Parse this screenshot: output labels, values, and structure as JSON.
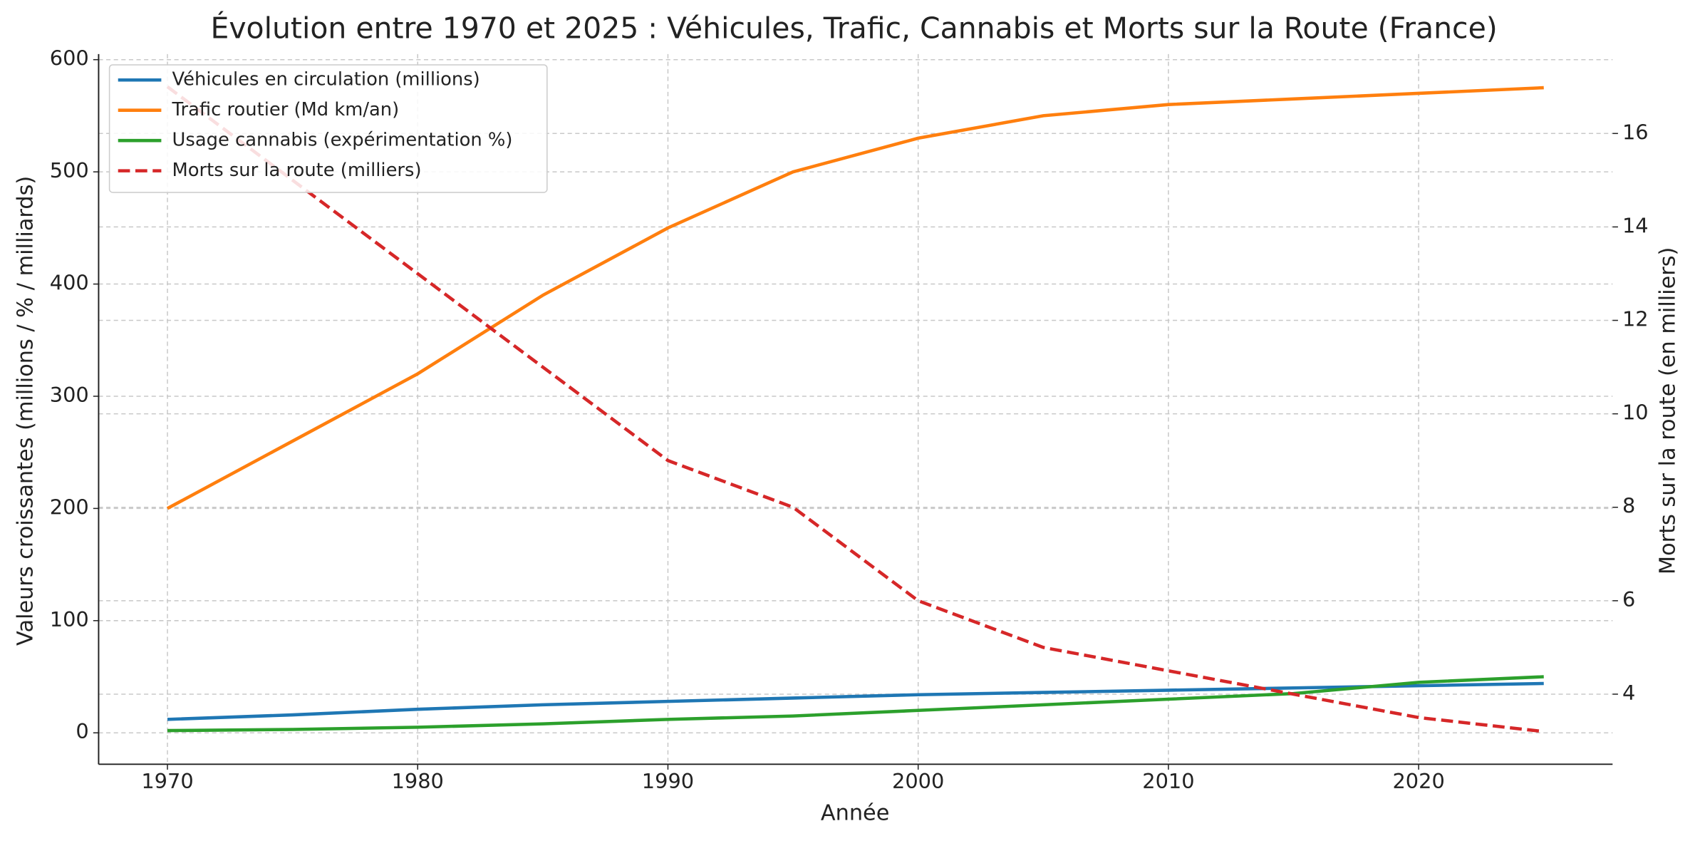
{
  "chart_data": {
    "type": "line",
    "title": "Évolution entre 1970 et 2025 : Véhicules, Trafic, Cannabis et Morts sur la Route (France)",
    "xlabel": "Année",
    "ylabel": "Valeurs croissantes (millions / % / milliards)",
    "y2label": "Morts sur la route (en milliers)",
    "x": [
      1970,
      1975,
      1980,
      1985,
      1990,
      1995,
      2000,
      2005,
      2010,
      2015,
      2020,
      2025
    ],
    "series": [
      {
        "name": "Véhicules en circulation (millions)",
        "color": "#1f77b4",
        "values": [
          12,
          16,
          21,
          25,
          28,
          31,
          34,
          36,
          38,
          40,
          42,
          44
        ]
      },
      {
        "name": "Trafic routier (Md km/an)",
        "color": "#ff7f0e",
        "values": [
          200,
          260,
          320,
          390,
          450,
          500,
          530,
          550,
          560,
          565,
          570,
          575
        ]
      },
      {
        "name": "Usage cannabis (expérimentation %)",
        "color": "#2ca02c",
        "values": [
          2,
          3,
          5,
          8,
          12,
          15,
          20,
          25,
          30,
          35,
          45,
          50
        ]
      },
      {
        "name": "Morts sur la route (milliers)",
        "color": "#d62728",
        "linestyle": "dashed",
        "axis": "y2",
        "values": [
          17,
          15,
          13,
          11,
          9,
          8,
          6,
          5,
          4.5,
          4,
          3.5,
          3.2
        ]
      }
    ],
    "xlim": [
      1967.25,
      2027.75
    ],
    "xticks": [
      1970,
      1980,
      1990,
      2000,
      2010,
      2020
    ],
    "ylim": [
      -28,
      605
    ],
    "yticks": [
      0,
      100,
      200,
      300,
      400,
      500,
      600
    ],
    "y2lim": [
      2.5,
      17.7
    ],
    "y2ticks": [
      4,
      6,
      8,
      10,
      12,
      14,
      16
    ],
    "grid": true,
    "legend": "upper left"
  }
}
